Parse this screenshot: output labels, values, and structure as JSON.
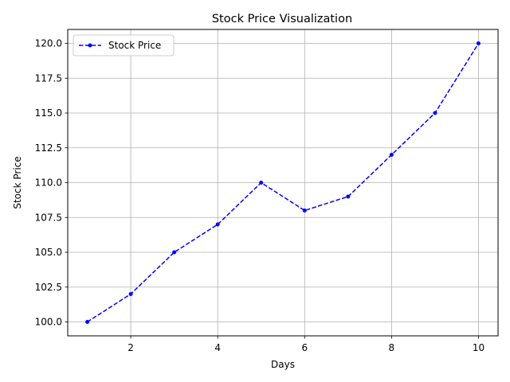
{
  "chart_data": {
    "type": "line",
    "title": "Stock Price Visualization",
    "xlabel": "Days",
    "ylabel": "Stock Price",
    "x": [
      1,
      2,
      3,
      4,
      5,
      6,
      7,
      8,
      9,
      10
    ],
    "series": [
      {
        "name": "Stock Price",
        "values": [
          100,
          102,
          105,
          107,
          110,
          108,
          109,
          112,
          115,
          120
        ],
        "color": "#0000ff",
        "line_style": "dashed",
        "marker": "circle"
      }
    ],
    "xlim": [
      0.55,
      10.45
    ],
    "ylim": [
      99,
      121
    ],
    "x_ticks": [
      2,
      4,
      6,
      8,
      10
    ],
    "x_tick_labels": [
      "2",
      "4",
      "6",
      "8",
      "10"
    ],
    "y_ticks": [
      100,
      102.5,
      105,
      107.5,
      110,
      112.5,
      115,
      117.5,
      120
    ],
    "y_tick_labels": [
      "100.0",
      "102.5",
      "105.0",
      "107.5",
      "110.0",
      "112.5",
      "115.0",
      "117.5",
      "120.0"
    ],
    "grid": true,
    "legend_position": "top-left"
  }
}
